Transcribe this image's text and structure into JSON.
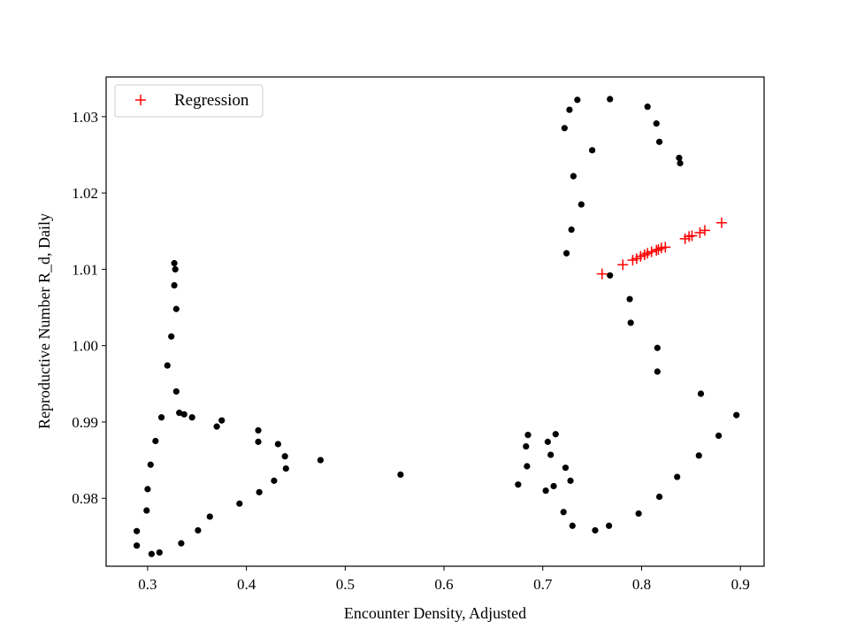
{
  "chart_data": {
    "type": "scatter",
    "xlabel": "Encounter Density, Adjusted",
    "ylabel": "Reproductive Number R_d, Daily",
    "xlim": [
      0.258,
      0.924
    ],
    "ylim": [
      0.9711,
      1.0352
    ],
    "xticks": [
      0.3,
      0.4,
      0.5,
      0.6,
      0.7,
      0.8,
      0.9
    ],
    "xtick_labels": [
      "0.3",
      "0.4",
      "0.5",
      "0.6",
      "0.7",
      "0.8",
      "0.9"
    ],
    "yticks": [
      0.98,
      0.99,
      1.0,
      1.01,
      1.02,
      1.03
    ],
    "ytick_labels": [
      "0.98",
      "0.99",
      "1.00",
      "1.01",
      "1.02",
      "1.03"
    ],
    "grid": false,
    "legend_position": "top-left",
    "series": [
      {
        "role": "observed",
        "marker": "dot",
        "color": "#000000",
        "points": [
          [
            0.289,
            0.9757
          ],
          [
            0.289,
            0.9738
          ],
          [
            0.299,
            0.9784
          ],
          [
            0.3,
            0.9812
          ],
          [
            0.303,
            0.9844
          ],
          [
            0.304,
            0.9727
          ],
          [
            0.308,
            0.9875
          ],
          [
            0.312,
            0.9729
          ],
          [
            0.314,
            0.9906
          ],
          [
            0.32,
            0.9974
          ],
          [
            0.324,
            1.0012
          ],
          [
            0.327,
            1.0108
          ],
          [
            0.327,
            1.0079
          ],
          [
            0.328,
            1.01
          ],
          [
            0.329,
            1.0048
          ],
          [
            0.329,
            0.994
          ],
          [
            0.332,
            0.9912
          ],
          [
            0.334,
            0.9741
          ],
          [
            0.337,
            0.991
          ],
          [
            0.345,
            0.9906
          ],
          [
            0.351,
            0.9758
          ],
          [
            0.363,
            0.9776
          ],
          [
            0.37,
            0.9894
          ],
          [
            0.375,
            0.9902
          ],
          [
            0.393,
            0.9793
          ],
          [
            0.412,
            0.9889
          ],
          [
            0.412,
            0.9874
          ],
          [
            0.413,
            0.9808
          ],
          [
            0.428,
            0.9823
          ],
          [
            0.432,
            0.9871
          ],
          [
            0.439,
            0.9855
          ],
          [
            0.44,
            0.9839
          ],
          [
            0.475,
            0.985
          ],
          [
            0.556,
            0.9831
          ],
          [
            0.675,
            0.9818
          ],
          [
            0.683,
            0.9868
          ],
          [
            0.684,
            0.9842
          ],
          [
            0.685,
            0.9883
          ],
          [
            0.703,
            0.981
          ],
          [
            0.705,
            0.9874
          ],
          [
            0.708,
            0.9857
          ],
          [
            0.711,
            0.9816
          ],
          [
            0.713,
            0.9884
          ],
          [
            0.721,
            0.9782
          ],
          [
            0.722,
            1.0285
          ],
          [
            0.723,
            0.984
          ],
          [
            0.724,
            1.0121
          ],
          [
            0.727,
            1.0309
          ],
          [
            0.728,
            0.9823
          ],
          [
            0.729,
            1.0152
          ],
          [
            0.73,
            0.9764
          ],
          [
            0.731,
            1.0222
          ],
          [
            0.735,
            1.0322
          ],
          [
            0.739,
            1.0185
          ],
          [
            0.75,
            1.0256
          ],
          [
            0.753,
            0.9758
          ],
          [
            0.767,
            0.9764
          ],
          [
            0.768,
            1.0092
          ],
          [
            0.768,
            1.0323
          ],
          [
            0.788,
            1.0061
          ],
          [
            0.789,
            1.003
          ],
          [
            0.797,
            0.978
          ],
          [
            0.806,
            1.0313
          ],
          [
            0.815,
            1.0291
          ],
          [
            0.816,
            0.9997
          ],
          [
            0.816,
            0.9966
          ],
          [
            0.818,
            1.0267
          ],
          [
            0.818,
            0.9802
          ],
          [
            0.836,
            0.9828
          ],
          [
            0.838,
            1.0246
          ],
          [
            0.839,
            1.0239
          ],
          [
            0.858,
            0.9856
          ],
          [
            0.86,
            0.9937
          ],
          [
            0.878,
            0.9882
          ],
          [
            0.896,
            0.9909
          ]
        ]
      },
      {
        "name": "Regression",
        "marker": "plus",
        "color": "#ff0000",
        "points": [
          [
            0.76,
            1.0094
          ],
          [
            0.781,
            1.0106
          ],
          [
            0.791,
            1.0112
          ],
          [
            0.795,
            1.0114
          ],
          [
            0.799,
            1.0117
          ],
          [
            0.803,
            1.0119
          ],
          [
            0.806,
            1.0121
          ],
          [
            0.81,
            1.0123
          ],
          [
            0.815,
            1.0125
          ],
          [
            0.817,
            1.0126
          ],
          [
            0.82,
            1.0128
          ],
          [
            0.824,
            1.0129
          ],
          [
            0.844,
            1.014
          ],
          [
            0.848,
            1.0143
          ],
          [
            0.851,
            1.0144
          ],
          [
            0.859,
            1.0148
          ],
          [
            0.864,
            1.0151
          ],
          [
            0.881,
            1.0161
          ]
        ]
      }
    ]
  }
}
